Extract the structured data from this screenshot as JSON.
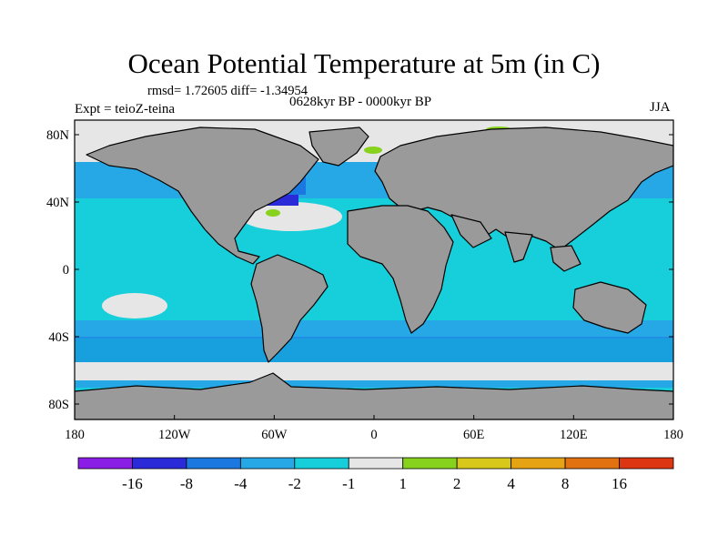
{
  "title": "Ocean Potential Temperature at 5m (in C)",
  "stats": "rmsd= 1.72605 diff= -1.34954",
  "period": "0628kyr BP - 0000kyr BP",
  "experiment": "Expt = teioZ-teina",
  "season": "JJA",
  "axes": {
    "lat_ticks": [
      {
        "label": "80N",
        "value": 80
      },
      {
        "label": "40N",
        "value": 40
      },
      {
        "label": "0",
        "value": 0
      },
      {
        "label": "40S",
        "value": -40
      },
      {
        "label": "80S",
        "value": -80
      }
    ],
    "lon_ticks": [
      {
        "label": "180",
        "value": -180
      },
      {
        "label": "120W",
        "value": -120
      },
      {
        "label": "60W",
        "value": -60
      },
      {
        "label": "0",
        "value": 0
      },
      {
        "label": "60E",
        "value": 60
      },
      {
        "label": "120E",
        "value": 120
      },
      {
        "label": "180",
        "value": 180
      }
    ],
    "lon_range": [
      -180,
      180
    ],
    "lat_range": [
      -90,
      90
    ]
  },
  "colorbar": {
    "colors": [
      "#8a1ee6",
      "#2a2ad8",
      "#1a78e0",
      "#27a8e6",
      "#16cfdb",
      "#e6e6e6",
      "#86d21c",
      "#d8c81a",
      "#e6a414",
      "#e27210",
      "#dc3612"
    ],
    "labels": [
      "-16",
      "-8",
      "-4",
      "-2",
      "-1",
      "1",
      "2",
      "4",
      "8",
      "16"
    ]
  },
  "colors": {
    "land": "#9a9a9a",
    "ocean_default": "#16cfdb",
    "band_light_blue": "#27a8e6",
    "neutral": "#e6e6e6",
    "cold_strong": "#2a2ad8",
    "mid_blue": "#1a78e0",
    "warm_green": "#86d21c"
  }
}
